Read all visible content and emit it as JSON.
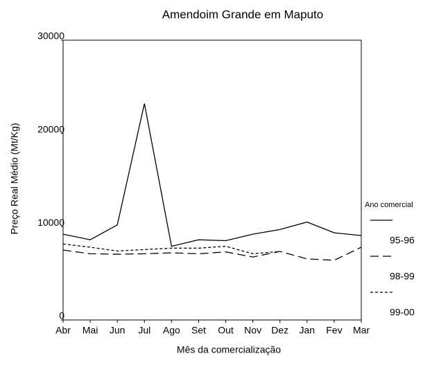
{
  "chart_data": {
    "type": "line",
    "title": "Amendoim Grande em Maputo",
    "x_label": "Mês da comercialização",
    "y_label": "Preço Real Médio (Mt/Kg)",
    "legend_title": "Ano comercial",
    "legend": "right",
    "categories": [
      "Abr",
      "Mai",
      "Jun",
      "Jul",
      "Ago",
      "Set",
      "Out",
      "Nov",
      "Dez",
      "Jan",
      "Fev",
      "Mar"
    ],
    "series": [
      {
        "name": "95-96",
        "color": "#000000",
        "dash": "none",
        "values": [
          9200,
          8600,
          10200,
          23200,
          7900,
          8600,
          8500,
          9200,
          9700,
          10500,
          9350,
          9050
        ]
      },
      {
        "name": "98-99",
        "color": "#000000",
        "dash": "12 6",
        "values": [
          7500,
          7100,
          7050,
          7100,
          7200,
          7100,
          7300,
          6750,
          7350,
          6550,
          6400,
          7800
        ]
      },
      {
        "name": "99-00",
        "color": "#000000",
        "dash": "4 3",
        "values": [
          8150,
          7800,
          7400,
          7550,
          7700,
          7700,
          7900,
          7100,
          7350,
          null,
          null,
          null
        ]
      }
    ],
    "ylim": [
      0,
      30000
    ],
    "yticks": [
      0,
      10000,
      20000,
      30000
    ]
  }
}
